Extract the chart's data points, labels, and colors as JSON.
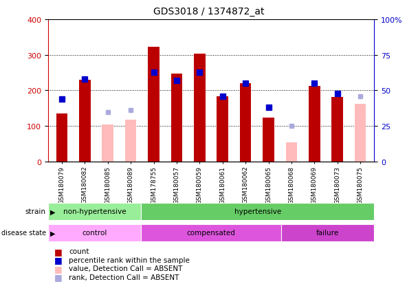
{
  "title": "GDS3018 / 1374872_at",
  "samples": [
    "GSM180079",
    "GSM180082",
    "GSM180085",
    "GSM180089",
    "GSM178755",
    "GSM180057",
    "GSM180059",
    "GSM180061",
    "GSM180062",
    "GSM180065",
    "GSM180068",
    "GSM180069",
    "GSM180073",
    "GSM180075"
  ],
  "count_values": [
    135,
    230,
    null,
    null,
    322,
    248,
    303,
    183,
    220,
    124,
    null,
    213,
    182,
    null
  ],
  "count_absent": [
    null,
    null,
    105,
    118,
    null,
    null,
    null,
    null,
    null,
    null,
    55,
    null,
    null,
    162
  ],
  "percentile_values": [
    44,
    58,
    null,
    null,
    63,
    57,
    63,
    46,
    55,
    38,
    null,
    55,
    48,
    null
  ],
  "percentile_absent": [
    null,
    null,
    35,
    36,
    null,
    null,
    null,
    null,
    null,
    null,
    25,
    null,
    null,
    46
  ],
  "ylim_left": [
    0,
    400
  ],
  "ylim_right": [
    0,
    100
  ],
  "yticks_left": [
    0,
    100,
    200,
    300,
    400
  ],
  "yticks_right": [
    0,
    25,
    50,
    75,
    100
  ],
  "yticklabels_right": [
    "0",
    "25",
    "50",
    "75",
    "100%"
  ],
  "bar_color_red": "#bb0000",
  "bar_color_red_absent": "#ffbbbb",
  "marker_color_blue": "#0000cc",
  "marker_color_blue_absent": "#aaaadd",
  "strain_groups": [
    {
      "label": "non-hypertensive",
      "start": 0,
      "end": 4,
      "color": "#99ee99"
    },
    {
      "label": "hypertensive",
      "start": 4,
      "end": 14,
      "color": "#66cc66"
    }
  ],
  "disease_groups": [
    {
      "label": "control",
      "start": 0,
      "end": 4,
      "color": "#ffaaff"
    },
    {
      "label": "compensated",
      "start": 4,
      "end": 10,
      "color": "#dd55dd"
    },
    {
      "label": "failure",
      "start": 10,
      "end": 14,
      "color": "#cc44cc"
    }
  ],
  "legend_items": [
    {
      "label": "count",
      "color": "#bb0000"
    },
    {
      "label": "percentile rank within the sample",
      "color": "#0000cc"
    },
    {
      "label": "value, Detection Call = ABSENT",
      "color": "#ffbbbb"
    },
    {
      "label": "rank, Detection Call = ABSENT",
      "color": "#aaaadd"
    }
  ],
  "background_color": "#ffffff",
  "bar_width": 0.5,
  "left_label_color": "#cc0000",
  "right_label_color": "#0000cc"
}
